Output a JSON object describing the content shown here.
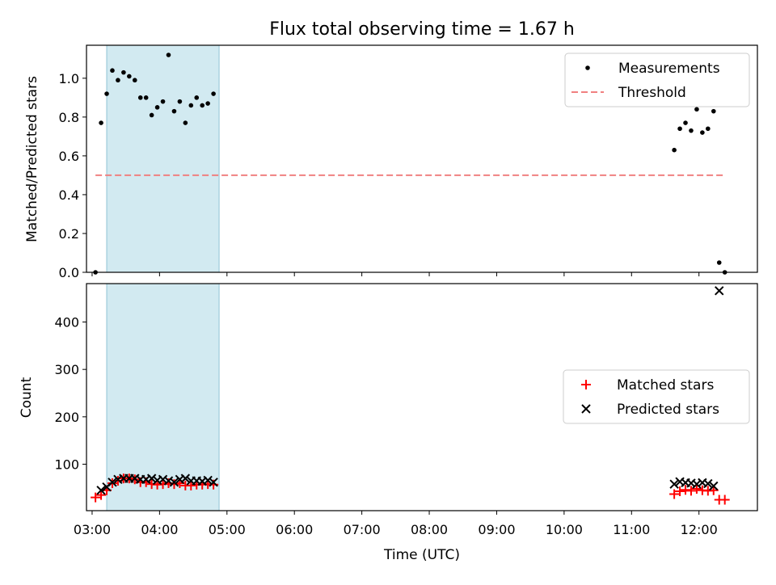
{
  "title": "Flux total observing time = 1.67 h",
  "xlabel": "Time (UTC)",
  "colors": {
    "measurement": "#000000",
    "threshold": "#f08080",
    "matched": "#ff0000",
    "predicted": "#000000",
    "highlight": "#add8e6"
  },
  "chart_data": [
    {
      "type": "scatter",
      "panel": "top",
      "ylabel": "Matched/Predicted stars",
      "ylim": [
        0,
        1.17
      ],
      "yticks": [
        0.0,
        0.2,
        0.4,
        0.6,
        0.8,
        1.0
      ],
      "ytick_labels": [
        "0.0",
        "0.2",
        "0.4",
        "0.6",
        "0.8",
        "1.0"
      ],
      "xlim": [
        "02:55",
        "12:52"
      ],
      "xticks": [
        "03:00",
        "04:00",
        "05:00",
        "06:00",
        "07:00",
        "08:00",
        "09:00",
        "10:00",
        "11:00",
        "12:00"
      ],
      "xtick_labels": [
        "",
        "",
        "",
        "",
        "",
        "",
        "",
        "",
        "",
        ""
      ],
      "grid": false,
      "legend": "top-right",
      "highlight_span": [
        "03:13",
        "04:53"
      ],
      "series": [
        {
          "name": "Measurements",
          "marker": "dot",
          "x": [
            "03:03",
            "03:08",
            "03:13",
            "03:18",
            "03:23",
            "03:28",
            "03:33",
            "03:38",
            "03:43",
            "03:48",
            "03:53",
            "03:58",
            "04:03",
            "04:08",
            "04:13",
            "04:18",
            "04:23",
            "04:28",
            "04:33",
            "04:38",
            "04:43",
            "04:48",
            "11:38",
            "11:43",
            "11:48",
            "11:53",
            "11:58",
            "12:03",
            "12:08",
            "12:13",
            "12:18",
            "12:23"
          ],
          "y": [
            0.0,
            0.77,
            0.92,
            1.04,
            0.99,
            1.03,
            1.01,
            0.99,
            0.9,
            0.9,
            0.81,
            0.85,
            0.88,
            1.12,
            0.83,
            0.88,
            0.77,
            0.86,
            0.9,
            0.86,
            0.87,
            0.92,
            0.63,
            0.74,
            0.77,
            0.73,
            0.84,
            0.72,
            0.74,
            0.83,
            0.05,
            0.0
          ]
        },
        {
          "name": "Threshold",
          "marker": "dashed-line",
          "x": [
            "03:03",
            "12:23"
          ],
          "y": [
            0.5,
            0.5
          ]
        }
      ]
    },
    {
      "type": "scatter",
      "panel": "bottom",
      "ylabel": "Count",
      "ylim": [
        2,
        481
      ],
      "yticks": [
        100,
        200,
        300,
        400
      ],
      "ytick_labels": [
        "100",
        "200",
        "300",
        "400"
      ],
      "xlim": [
        "02:55",
        "12:52"
      ],
      "xticks": [
        "03:00",
        "04:00",
        "05:00",
        "06:00",
        "07:00",
        "08:00",
        "09:00",
        "10:00",
        "11:00",
        "12:00"
      ],
      "xtick_labels": [
        "03:00",
        "04:00",
        "05:00",
        "06:00",
        "07:00",
        "08:00",
        "09:00",
        "10:00",
        "11:00",
        "12:00"
      ],
      "grid": false,
      "legend": "right",
      "highlight_span": [
        "03:13",
        "04:53"
      ],
      "series": [
        {
          "name": "Matched stars",
          "marker": "plus",
          "x": [
            "03:03",
            "03:08",
            "03:13",
            "03:18",
            "03:23",
            "03:28",
            "03:33",
            "03:38",
            "03:43",
            "03:48",
            "03:53",
            "03:58",
            "04:03",
            "04:08",
            "04:13",
            "04:18",
            "04:23",
            "04:28",
            "04:33",
            "04:38",
            "04:43",
            "04:48",
            "11:38",
            "11:43",
            "11:48",
            "11:53",
            "11:58",
            "12:03",
            "12:08",
            "12:13",
            "12:18",
            "12:23"
          ],
          "y": [
            30,
            35,
            45,
            60,
            65,
            70,
            70,
            68,
            62,
            62,
            58,
            57,
            58,
            60,
            58,
            60,
            55,
            55,
            57,
            57,
            58,
            57,
            37,
            43,
            46,
            44,
            48,
            45,
            44,
            45,
            25,
            25
          ]
        },
        {
          "name": "Predicted stars",
          "marker": "x",
          "x": [
            "03:08",
            "03:13",
            "03:18",
            "03:23",
            "03:28",
            "03:33",
            "03:38",
            "03:43",
            "03:48",
            "03:53",
            "03:58",
            "04:03",
            "04:08",
            "04:13",
            "04:18",
            "04:23",
            "04:28",
            "04:33",
            "04:38",
            "04:43",
            "04:48",
            "11:38",
            "11:43",
            "11:48",
            "11:53",
            "11:58",
            "12:03",
            "12:08",
            "12:13",
            "12:18"
          ],
          "y": [
            45,
            52,
            62,
            68,
            70,
            70,
            70,
            68,
            68,
            70,
            66,
            68,
            65,
            62,
            68,
            70,
            65,
            65,
            64,
            66,
            62,
            58,
            63,
            61,
            60,
            58,
            61,
            59,
            54,
            466
          ]
        }
      ]
    }
  ]
}
